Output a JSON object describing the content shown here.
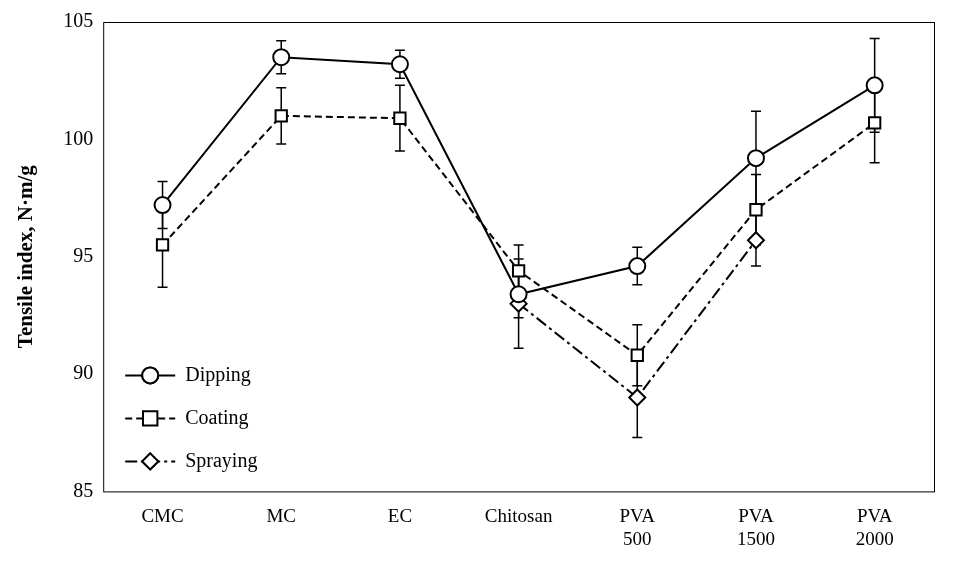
{
  "chart_data": {
    "type": "line",
    "categories": [
      "CMC",
      "MC",
      "EC",
      "Chitosan",
      "PVA 500",
      "PVA 1500",
      "PVA 2000"
    ],
    "y_label": "Tensile index, N·m/g",
    "ylim": [
      85,
      105
    ],
    "yticks": [
      85,
      90,
      95,
      100,
      105
    ],
    "grid": false,
    "legend": "lower left",
    "series": [
      {
        "name": "Dipping",
        "color": "#000000",
        "line_style": "solid",
        "marker": "circle",
        "values": [
          97.2,
          103.5,
          103.2,
          93.4,
          94.6,
          99.2,
          102.3
        ],
        "errors": [
          1.0,
          0.7,
          0.6,
          1.0,
          0.8,
          2.0,
          2.0
        ]
      },
      {
        "name": "Coating",
        "color": "#000000",
        "line_style": "dashed",
        "marker": "square",
        "values": [
          95.5,
          101.0,
          100.9,
          94.4,
          90.8,
          97.0,
          100.7
        ],
        "errors": [
          1.8,
          1.2,
          1.4,
          1.1,
          1.3,
          1.5,
          1.7
        ]
      },
      {
        "name": "Spraying",
        "color": "#000000",
        "line_style": "dashdot",
        "marker": "diamond",
        "values": [
          null,
          null,
          null,
          93.0,
          89.0,
          95.7,
          null
        ],
        "errors": [
          null,
          null,
          null,
          1.9,
          1.7,
          1.1,
          null
        ]
      }
    ]
  }
}
